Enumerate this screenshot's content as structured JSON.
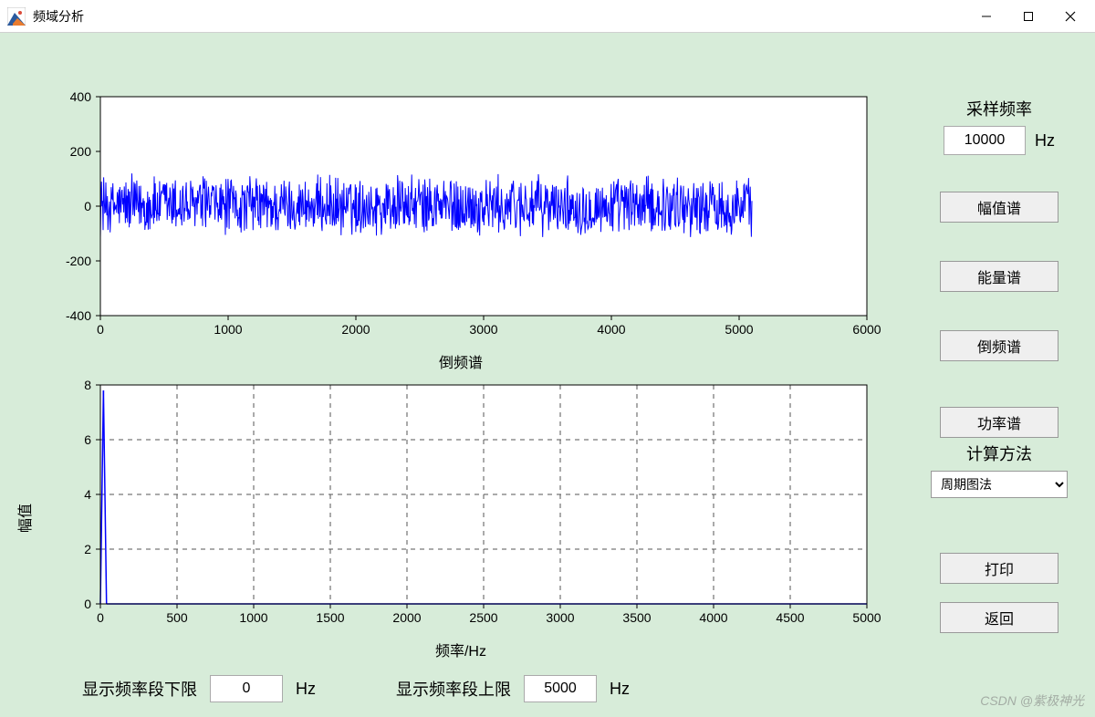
{
  "window": {
    "title": "频域分析"
  },
  "chart1": {
    "title": "倒频谱",
    "ylim": [
      -400,
      400
    ],
    "yticks": [
      -400,
      -200,
      0,
      200,
      400
    ],
    "xlim": [
      0,
      6000
    ],
    "xticks": [
      0,
      1000,
      2000,
      3000,
      4000,
      5000,
      6000
    ],
    "signal_color": "#0000ff",
    "signal_xmax": 5100,
    "signal_amplitude": 120,
    "signal_points": 1200,
    "bg_color": "#ffffff",
    "seed": 12345
  },
  "chart2": {
    "xlabel": "频率/Hz",
    "ylabel": "幅值",
    "ylim": [
      0,
      8
    ],
    "yticks": [
      0,
      2,
      4,
      6,
      8
    ],
    "xlim": [
      0,
      5000
    ],
    "xticks": [
      0,
      500,
      1000,
      1500,
      2000,
      2500,
      3000,
      3500,
      4000,
      4500,
      5000
    ],
    "grid_on": true,
    "bg_color": "#ffffff",
    "spike_x": 20,
    "line_color": "#0000ff"
  },
  "controls": {
    "sampling_label": "采样频率",
    "sampling_value": "10000",
    "sampling_unit": "Hz",
    "btn_amplitude": "幅值谱",
    "btn_energy": "能量谱",
    "btn_cepstrum": "倒频谱",
    "btn_power": "功率谱",
    "method_label": "计算方法",
    "method_value": "周期图法",
    "btn_print": "打印",
    "btn_back": "返回"
  },
  "bottom": {
    "lower_label": "显示频率段下限",
    "lower_value": "0",
    "upper_label": "显示频率段上限",
    "upper_value": "5000",
    "unit": "Hz"
  },
  "watermark": "CSDN @紫极神光",
  "colors": {
    "content_bg": "#d7ecd9",
    "button_bg": "#efefef"
  }
}
